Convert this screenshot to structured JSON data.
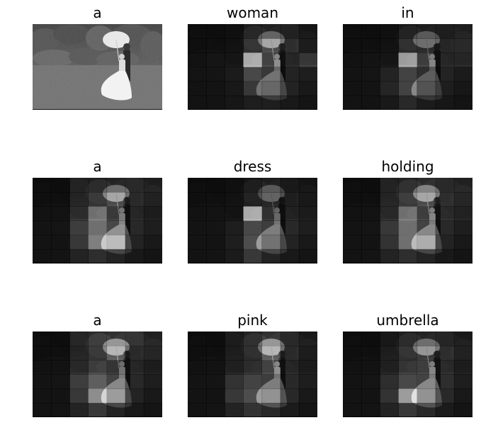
{
  "panels": [
    {
      "word": "a"
    },
    {
      "word": "woman"
    },
    {
      "word": "in"
    },
    {
      "word": "a"
    },
    {
      "word": "dress"
    },
    {
      "word": "holding"
    },
    {
      "word": "a"
    },
    {
      "word": "pink"
    },
    {
      "word": "umbrella"
    }
  ],
  "attention": [
    null,
    [
      [
        0.05,
        0.05,
        0.08,
        0.3,
        0.35,
        0.3,
        0.18
      ],
      [
        0.05,
        0.06,
        0.1,
        0.45,
        0.65,
        0.45,
        0.2
      ],
      [
        0.05,
        0.08,
        0.12,
        0.95,
        0.6,
        0.3,
        0.5
      ],
      [
        0.05,
        0.06,
        0.12,
        0.55,
        0.4,
        0.2,
        0.15
      ],
      [
        0.04,
        0.05,
        0.1,
        0.4,
        0.35,
        0.2,
        0.1
      ],
      [
        0.04,
        0.04,
        0.08,
        0.15,
        0.15,
        0.1,
        0.06
      ]
    ],
    [
      [
        0.05,
        0.05,
        0.08,
        0.25,
        0.3,
        0.25,
        0.3
      ],
      [
        0.05,
        0.06,
        0.1,
        0.4,
        0.4,
        0.35,
        0.35
      ],
      [
        0.05,
        0.07,
        0.12,
        0.9,
        0.55,
        0.3,
        0.3
      ],
      [
        0.05,
        0.06,
        0.2,
        0.5,
        0.3,
        0.2,
        0.12
      ],
      [
        0.04,
        0.05,
        0.22,
        0.5,
        0.25,
        0.15,
        0.08
      ],
      [
        0.04,
        0.04,
        0.1,
        0.25,
        0.12,
        0.08,
        0.05
      ]
    ],
    [
      [
        0.05,
        0.05,
        0.35,
        0.35,
        0.4,
        0.4,
        0.3
      ],
      [
        0.05,
        0.06,
        0.35,
        0.5,
        0.65,
        0.4,
        0.25
      ],
      [
        0.05,
        0.06,
        0.4,
        0.75,
        0.5,
        0.3,
        0.2
      ],
      [
        0.05,
        0.06,
        0.45,
        0.7,
        0.55,
        0.25,
        0.15
      ],
      [
        0.05,
        0.05,
        0.4,
        0.75,
        0.7,
        0.2,
        0.1
      ],
      [
        0.04,
        0.05,
        0.2,
        0.3,
        0.2,
        0.1,
        0.06
      ]
    ],
    [
      [
        0.05,
        0.05,
        0.08,
        0.2,
        0.3,
        0.2,
        0.15
      ],
      [
        0.05,
        0.06,
        0.1,
        0.25,
        0.35,
        0.25,
        0.15
      ],
      [
        0.05,
        0.06,
        0.1,
        0.95,
        0.4,
        0.25,
        0.18
      ],
      [
        0.05,
        0.06,
        0.15,
        0.55,
        0.45,
        0.25,
        0.15
      ],
      [
        0.05,
        0.05,
        0.15,
        0.6,
        0.4,
        0.2,
        0.1
      ],
      [
        0.04,
        0.05,
        0.12,
        0.4,
        0.2,
        0.1,
        0.06
      ]
    ],
    [
      [
        0.05,
        0.05,
        0.35,
        0.4,
        0.5,
        0.4,
        0.35
      ],
      [
        0.05,
        0.06,
        0.35,
        0.55,
        0.65,
        0.45,
        0.3
      ],
      [
        0.05,
        0.06,
        0.35,
        0.75,
        0.55,
        0.35,
        0.25
      ],
      [
        0.05,
        0.06,
        0.4,
        0.7,
        0.5,
        0.25,
        0.15
      ],
      [
        0.05,
        0.05,
        0.35,
        0.7,
        0.65,
        0.2,
        0.1
      ],
      [
        0.04,
        0.05,
        0.2,
        0.3,
        0.2,
        0.1,
        0.06
      ]
    ],
    [
      [
        0.05,
        0.05,
        0.4,
        0.55,
        0.6,
        0.55,
        0.35
      ],
      [
        0.05,
        0.06,
        0.35,
        0.5,
        0.7,
        0.4,
        0.3
      ],
      [
        0.05,
        0.06,
        0.35,
        0.6,
        0.45,
        0.3,
        0.2
      ],
      [
        0.05,
        0.06,
        0.45,
        0.65,
        0.5,
        0.25,
        0.15
      ],
      [
        0.05,
        0.05,
        0.4,
        0.8,
        0.6,
        0.2,
        0.1
      ],
      [
        0.04,
        0.05,
        0.2,
        0.4,
        0.2,
        0.1,
        0.06
      ]
    ],
    [
      [
        0.05,
        0.05,
        0.25,
        0.4,
        0.6,
        0.4,
        0.25
      ],
      [
        0.05,
        0.06,
        0.25,
        0.4,
        0.7,
        0.4,
        0.2
      ],
      [
        0.05,
        0.06,
        0.25,
        0.4,
        0.6,
        0.3,
        0.18
      ],
      [
        0.05,
        0.06,
        0.35,
        0.5,
        0.45,
        0.25,
        0.15
      ],
      [
        0.05,
        0.05,
        0.4,
        0.6,
        0.55,
        0.25,
        0.1
      ],
      [
        0.04,
        0.05,
        0.2,
        0.35,
        0.25,
        0.12,
        0.06
      ]
    ],
    [
      [
        0.05,
        0.05,
        0.2,
        0.35,
        0.4,
        0.35,
        0.25
      ],
      [
        0.05,
        0.06,
        0.25,
        0.45,
        0.6,
        0.45,
        0.25
      ],
      [
        0.05,
        0.06,
        0.25,
        0.5,
        0.55,
        0.35,
        0.2
      ],
      [
        0.05,
        0.06,
        0.3,
        0.55,
        0.5,
        0.3,
        0.15
      ],
      [
        0.05,
        0.05,
        0.35,
        0.85,
        0.55,
        0.25,
        0.1
      ],
      [
        0.04,
        0.05,
        0.2,
        0.4,
        0.25,
        0.12,
        0.06
      ]
    ]
  ]
}
